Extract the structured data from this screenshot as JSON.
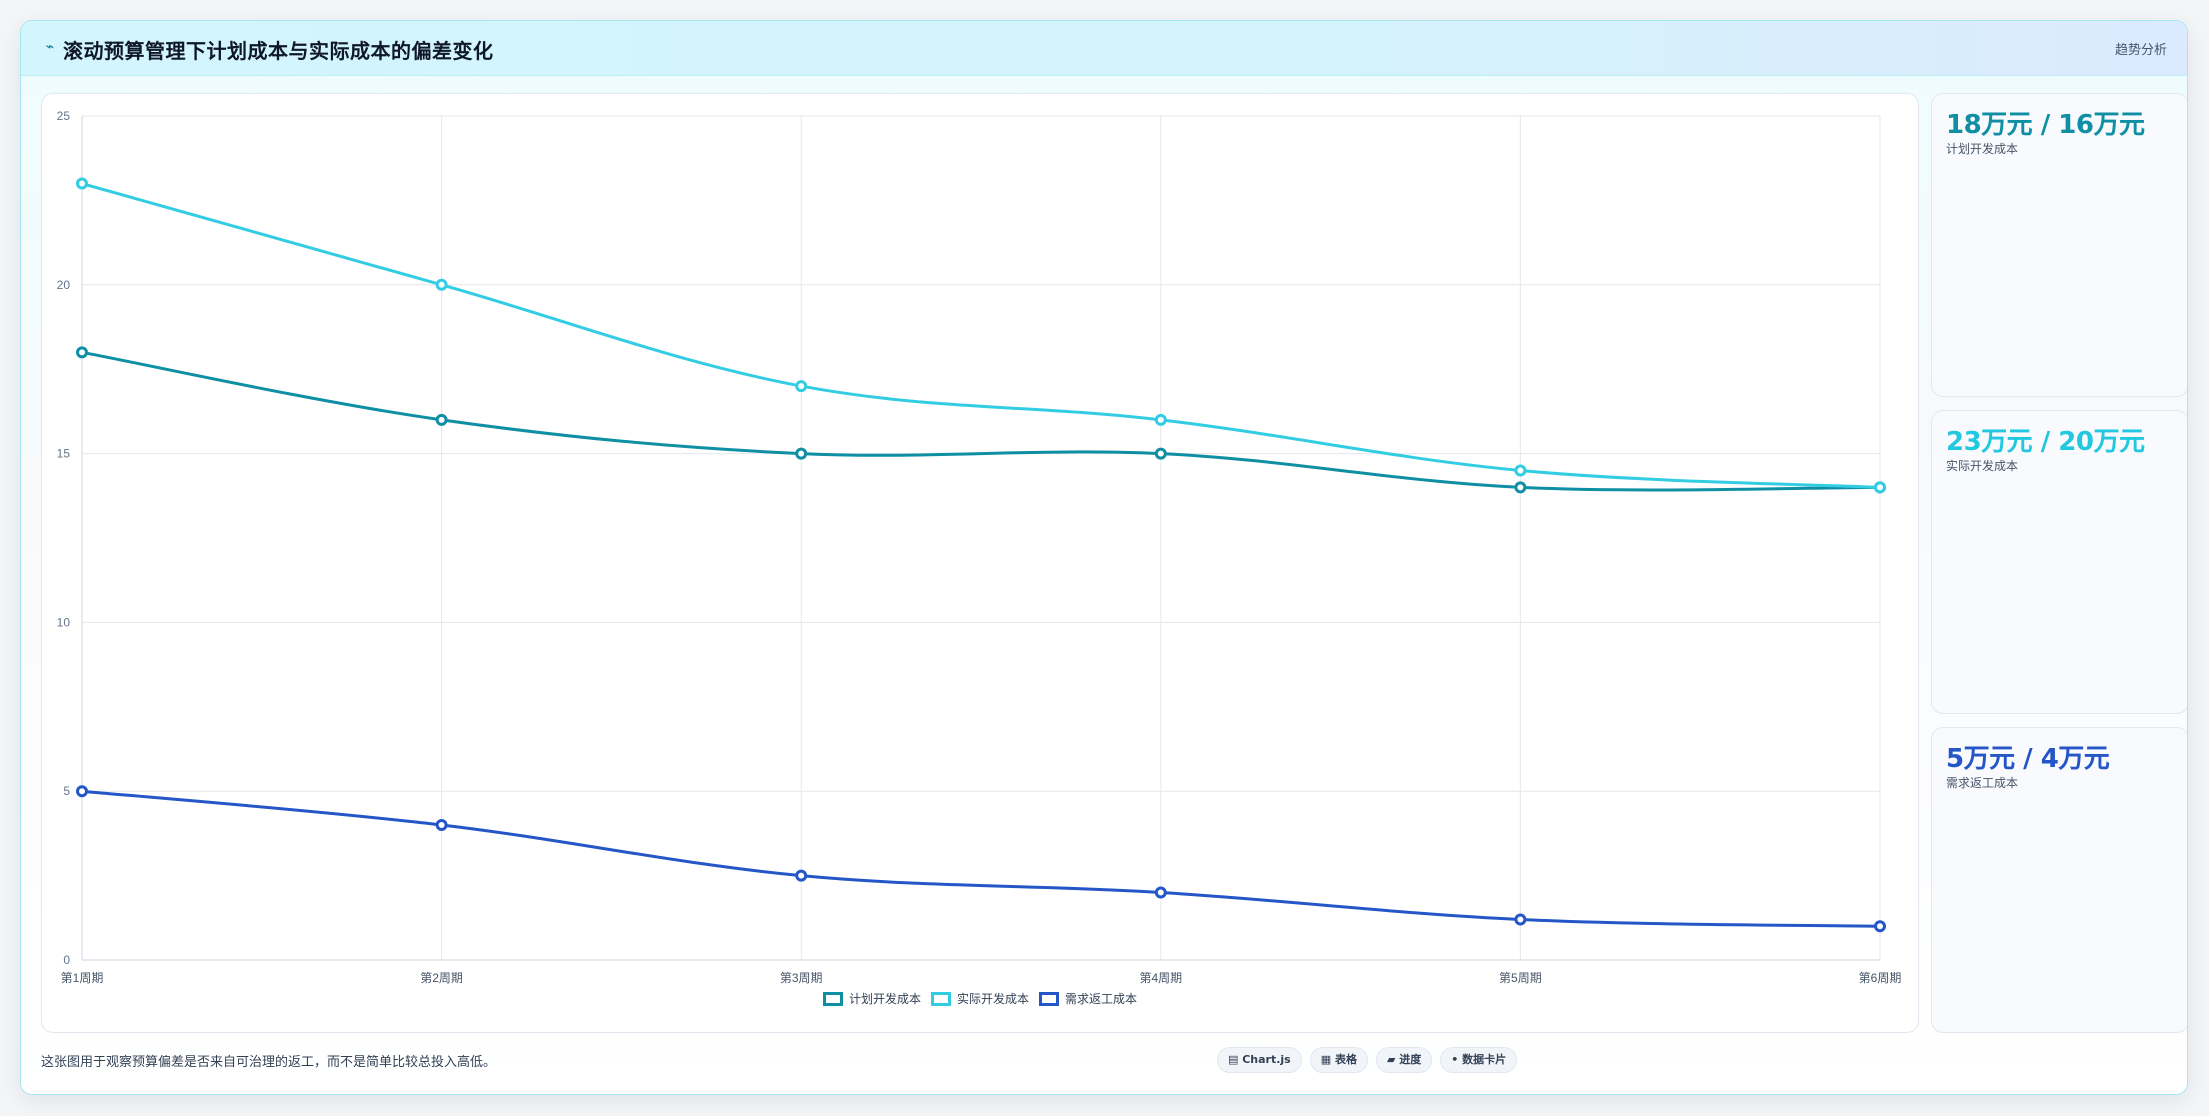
{
  "header": {
    "icon": "line-chart-icon",
    "title": "滚动预算管理下计划成本与实际成本的偏差变化",
    "tag": "趋势分析"
  },
  "side_cards": [
    {
      "value": "18万元 / 16万元",
      "label": "计划开发成本",
      "color": "#0e8fa3"
    },
    {
      "value": "23万元 / 20万元",
      "label": "实际开发成本",
      "color": "#22c7e0"
    },
    {
      "value": "5万元 / 4万元",
      "label": "需求返工成本",
      "color": "#2456c8"
    }
  ],
  "footer": {
    "note": "这张图用于观察预算偏差是否来自可治理的返工，而不是简单比较总投入高低。",
    "chips": [
      "▤ Chart.js",
      "▦ 表格",
      "▰ 进度",
      "• 数据卡片"
    ]
  },
  "chart_data": {
    "type": "line",
    "categories": [
      "第1周期",
      "第2周期",
      "第3周期",
      "第4周期",
      "第5周期",
      "第6周期"
    ],
    "series": [
      {
        "name": "计划开发成本",
        "values": [
          18,
          16,
          15,
          15,
          14,
          14
        ],
        "color": "#0e8fa3"
      },
      {
        "name": "实际开发成本",
        "values": [
          23,
          20,
          17,
          16,
          14.5,
          14
        ],
        "color": "#33cde3"
      },
      {
        "name": "需求返工成本",
        "values": [
          5,
          4,
          2.5,
          2,
          1.2,
          1
        ],
        "color": "#2456c8"
      }
    ],
    "ylim": [
      0,
      25
    ],
    "yticks": [
      0,
      5,
      10,
      15,
      20,
      25
    ],
    "grid": true,
    "legend": "bottom"
  }
}
